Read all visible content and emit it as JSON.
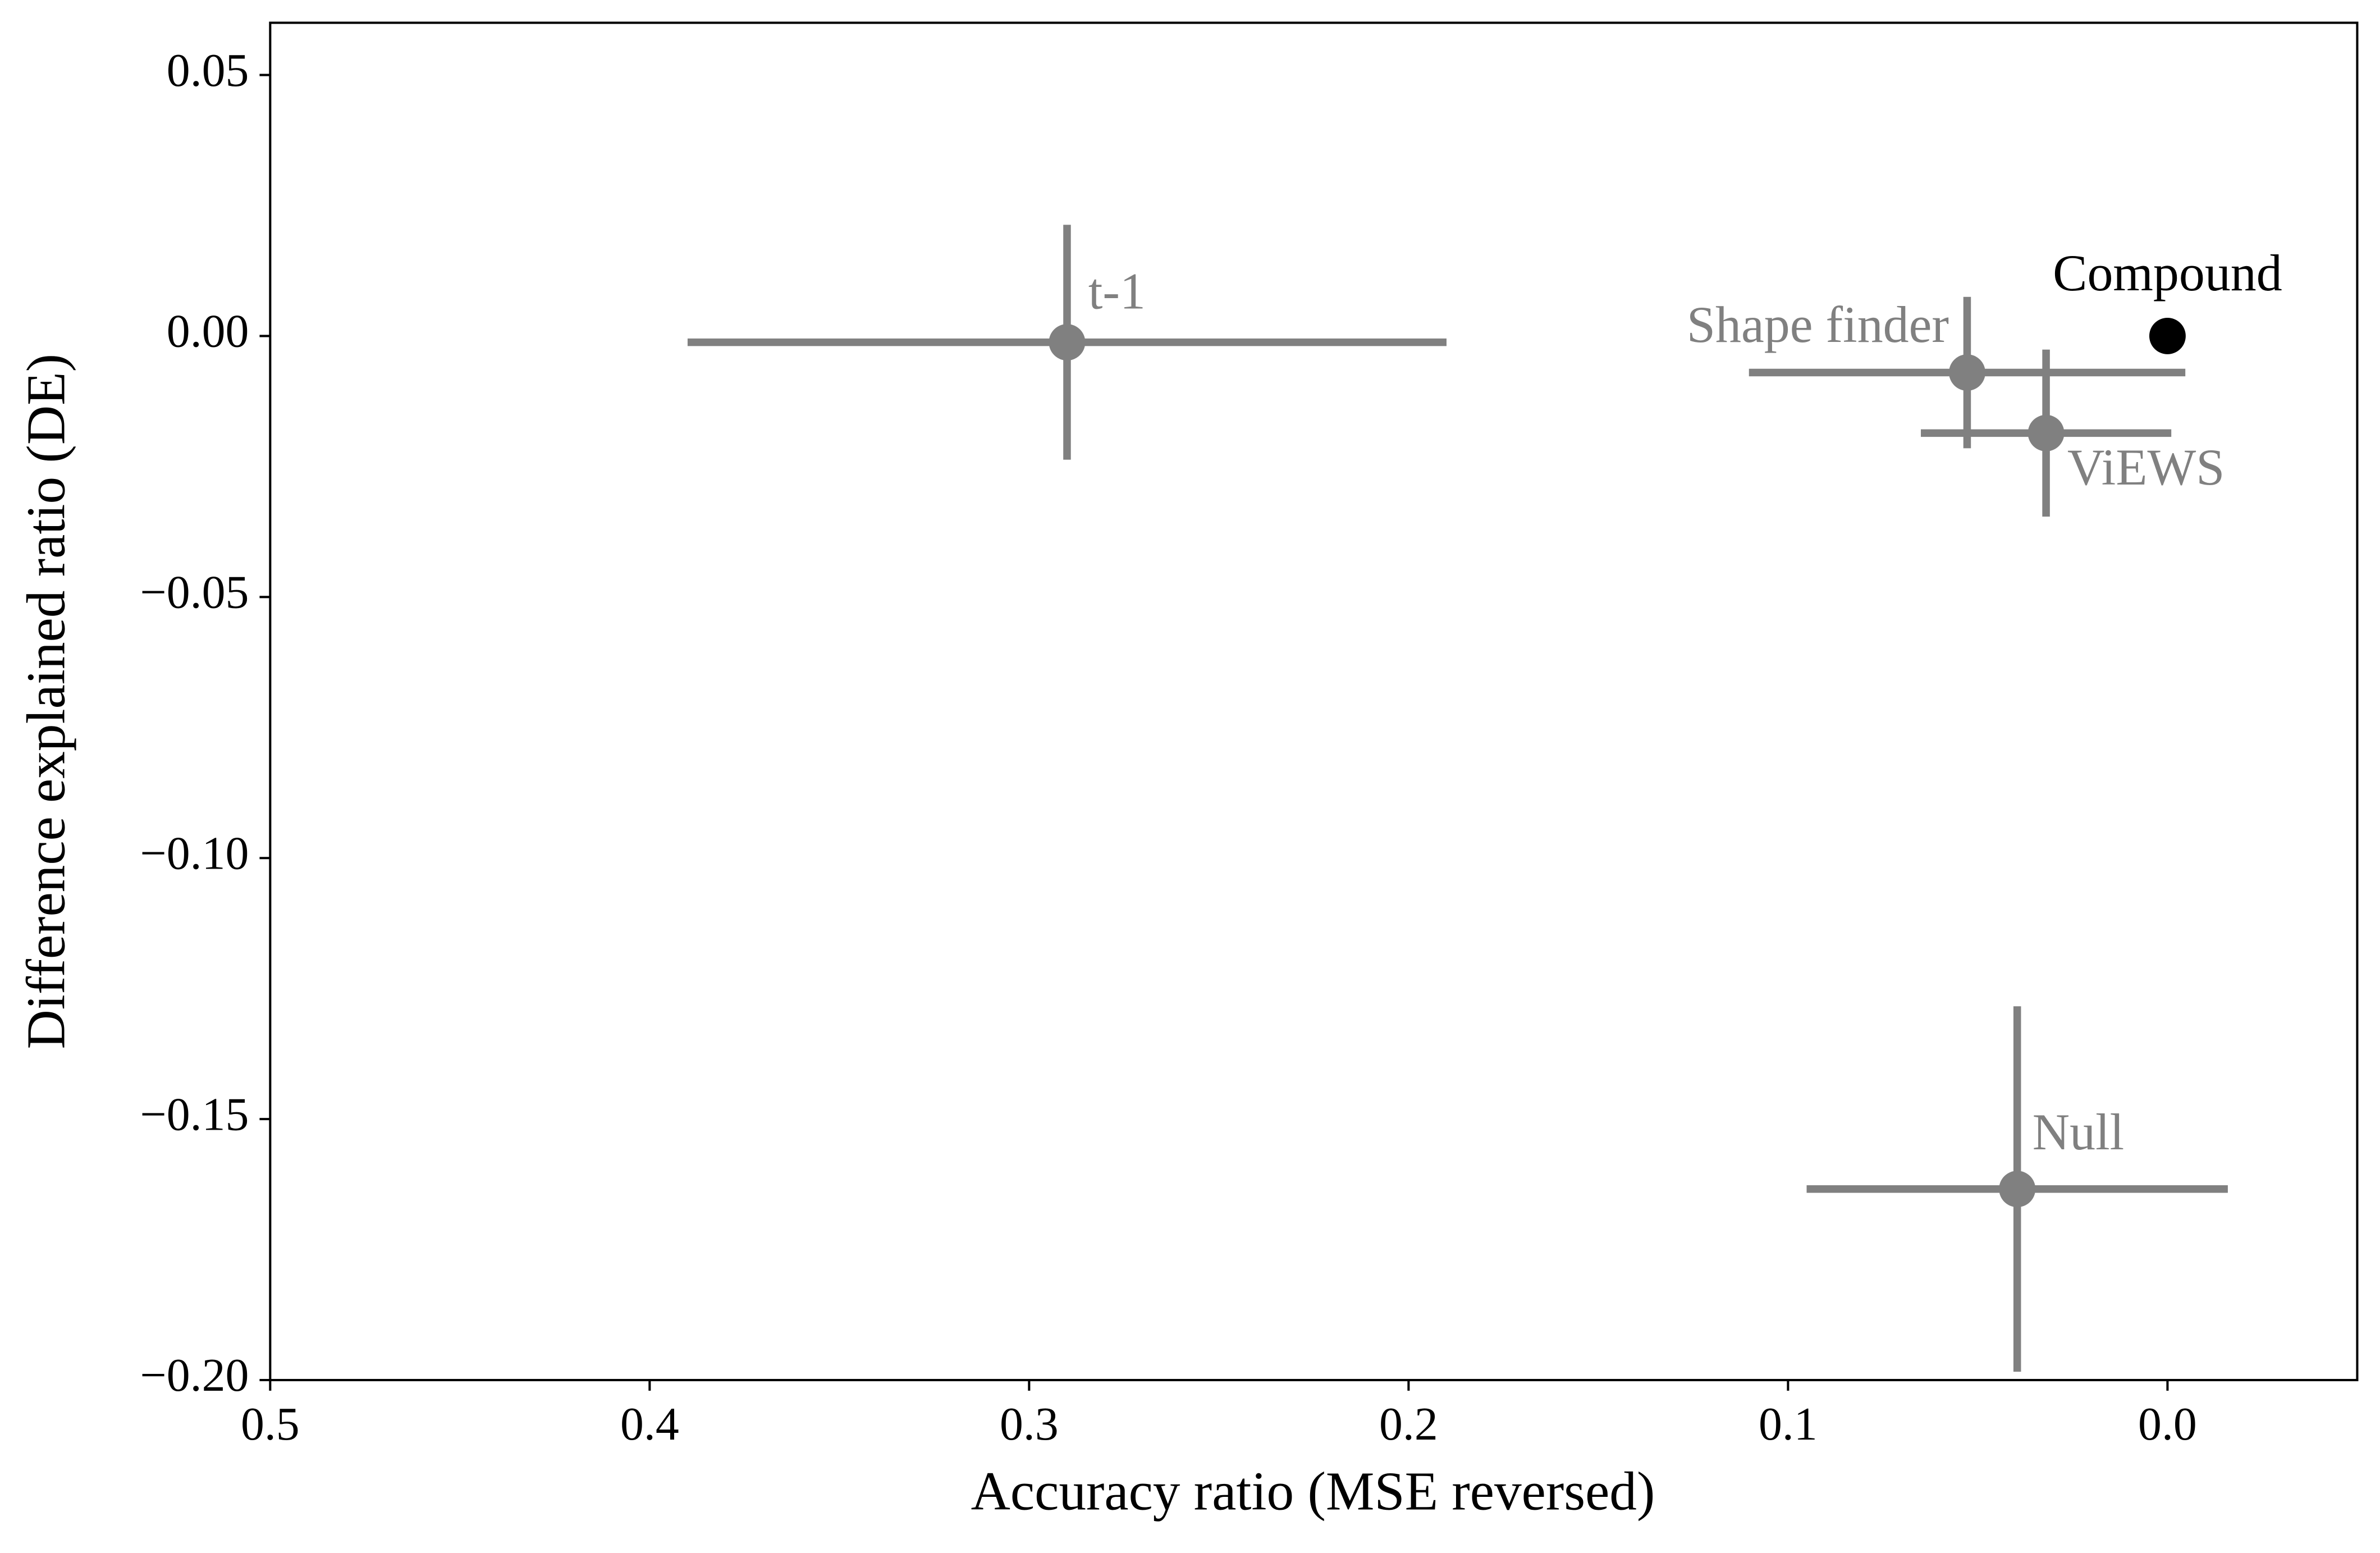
{
  "chart_data": {
    "type": "scatter",
    "xlabel": "Accuracy ratio (MSE reversed)",
    "ylabel": "Difference explained ratio (DE)",
    "xlim": [
      0.5,
      -0.05
    ],
    "ylim": [
      -0.2,
      0.06
    ],
    "xticks": [
      0.5,
      0.4,
      0.3,
      0.2,
      0.1,
      {
        "value": 0,
        "label": "0.0"
      }
    ],
    "yticks": [
      0.05,
      {
        "value": 0,
        "label": "0.00"
      },
      {
        "value": -0.05,
        "label": "−0.05"
      },
      {
        "value": -0.1,
        "label": "−0.10"
      },
      {
        "value": -0.15,
        "label": "−0.15"
      },
      {
        "value": -0.2,
        "label": "−0.20"
      }
    ],
    "series": [
      {
        "name": "t-1",
        "color": "#808080",
        "x": 0.29,
        "y": -0.0012,
        "xerr": 0.1,
        "yerr": 0.0225
      },
      {
        "name": "Shape finder",
        "color": "#808080",
        "x": 0.0528,
        "y": -0.007,
        "xerr": 0.0575,
        "yerr": 0.0145
      },
      {
        "name": "ViEWS",
        "color": "#808080",
        "x": 0.032,
        "y": -0.0186,
        "xerr": 0.033,
        "yerr": 0.016
      },
      {
        "name": "Null",
        "color": "#808080",
        "x": 0.0396,
        "y": -0.1634,
        "xerr": 0.0555,
        "yerr": 0.035
      },
      {
        "name": "Compound",
        "color": "#000000",
        "x": 0,
        "y": 0
      }
    ]
  }
}
